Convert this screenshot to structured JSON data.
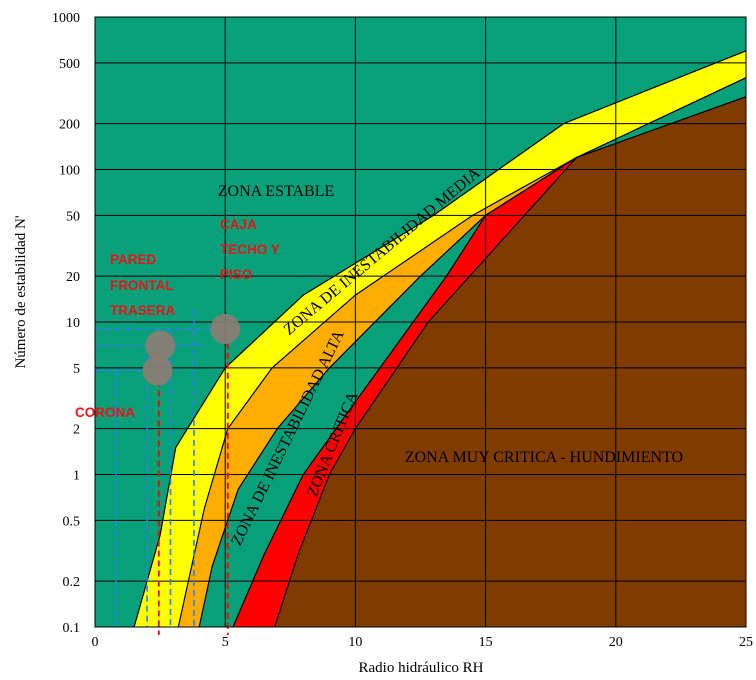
{
  "chart_data": {
    "type": "area",
    "xlabel": "Radio hidráulico RH",
    "ylabel": "Número de estabilidad N'",
    "x_scale": "linear",
    "y_scale": "log",
    "xlim": [
      0,
      25
    ],
    "ylim": [
      0.1,
      1000
    ],
    "x_ticks": [
      0,
      5,
      10,
      15,
      20,
      25
    ],
    "x_tick_labels": [
      "0",
      "5",
      "10",
      "15",
      "20",
      "25"
    ],
    "y_ticks": [
      0.1,
      0.2,
      0.5,
      1,
      2,
      5,
      10,
      20,
      50,
      100,
      200,
      500,
      1000
    ],
    "y_tick_labels": [
      "0.1",
      "0.2",
      "0.5",
      "1",
      "2",
      "5",
      "10",
      "20",
      "50",
      "100",
      "200",
      "500",
      "1000"
    ],
    "grid": true,
    "colors": {
      "stable": "#07a079",
      "medium": "#ffff00",
      "high": "#ffad00",
      "critical": "#ff0000",
      "very_critical": "#7f3b00",
      "annotation": "#e8141a",
      "point": "#8c7d74"
    },
    "boundaries": [
      {
        "id": "b1",
        "points": [
          [
            1.5,
            0.1
          ],
          [
            2.5,
            0.4
          ],
          [
            3.1,
            1.5
          ],
          [
            5,
            5
          ],
          [
            8,
            15
          ],
          [
            13,
            50
          ],
          [
            18,
            200
          ],
          [
            25,
            600
          ]
        ]
      },
      {
        "id": "b2",
        "points": [
          [
            3.2,
            0.1
          ],
          [
            4.2,
            0.6
          ],
          [
            5.1,
            2
          ],
          [
            6.8,
            5
          ],
          [
            10,
            15
          ],
          [
            14.5,
            50
          ],
          [
            18.5,
            120
          ],
          [
            25,
            400
          ]
        ]
      },
      {
        "id": "b3",
        "points": [
          [
            4,
            0.1
          ],
          [
            4.5,
            0.25
          ],
          [
            5.5,
            0.8
          ],
          [
            7,
            2
          ],
          [
            9,
            5
          ],
          [
            12.5,
            20
          ],
          [
            15,
            50
          ],
          [
            18.5,
            120
          ]
        ]
      },
      {
        "id": "b4",
        "points": [
          [
            5.3,
            0.1
          ],
          [
            6.5,
            0.3
          ],
          [
            8,
            1
          ],
          [
            10,
            3
          ],
          [
            13.5,
            20
          ],
          [
            15,
            50
          ],
          [
            18.5,
            120
          ]
        ]
      },
      {
        "id": "b5",
        "points": [
          [
            6.9,
            0.1
          ],
          [
            7.8,
            0.3
          ],
          [
            9,
            1
          ],
          [
            10,
            2
          ],
          [
            12.8,
            10
          ],
          [
            18.5,
            120
          ],
          [
            25,
            300
          ]
        ]
      }
    ],
    "zones": [
      {
        "id": "stable",
        "label": "ZONA ESTABLE"
      },
      {
        "id": "medium",
        "label": "ZONA DE INESTABILIDAD MEDIA"
      },
      {
        "id": "high",
        "label": "ZONA DE INESTABILIDAD ALTA"
      },
      {
        "id": "critical",
        "label": "ZONA CRITICA"
      },
      {
        "id": "very_critical",
        "label": "ZONA MUY CRITICA - HUNDIMIENTO"
      }
    ],
    "points": [
      {
        "id": "pared-frontal-trasera",
        "x": 2.5,
        "y": 7
      },
      {
        "id": "corona",
        "x": 2.4,
        "y": 4.8
      },
      {
        "id": "caja-techo-piso",
        "x": 5,
        "y": 9
      }
    ],
    "annotations": [
      {
        "id": "pared",
        "lines": [
          "PARED",
          "FRONTAL",
          "TRASERA"
        ]
      },
      {
        "id": "caja",
        "lines": [
          "CAJA",
          "TECHO Y",
          "PISO"
        ]
      },
      {
        "id": "corona",
        "lines": [
          "CORONA"
        ]
      }
    ],
    "reference_lines": {
      "blue_horizontal_y": [
        9,
        7,
        4.8
      ],
      "blue_vertical_x": [
        0.8,
        2.0,
        2.9,
        3.8
      ],
      "red_vertical_x": [
        2.45,
        5.1
      ]
    }
  }
}
